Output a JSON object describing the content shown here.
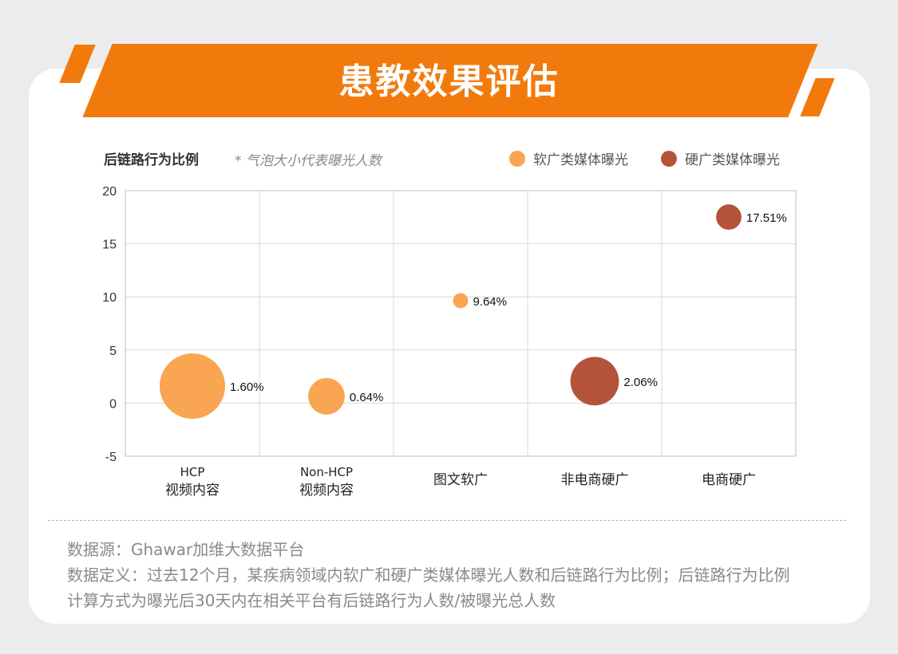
{
  "header": {
    "title": "患教效果评估"
  },
  "chart_header": {
    "title": "后链路行为比例",
    "note": "* 气泡大小代表曝光人数"
  },
  "legend": [
    {
      "label": "软广类媒体曝光",
      "color": "#F9A552"
    },
    {
      "label": "硬广类媒体曝光",
      "color": "#B5533A"
    }
  ],
  "chart_data": {
    "type": "scatter",
    "subtype": "bubble",
    "title": "后链路行为比例",
    "note": "* 气泡大小代表曝光人数",
    "categories": [
      [
        "HCP",
        "视频内容"
      ],
      [
        "Non-HCP",
        "视频内容"
      ],
      [
        "图文软广"
      ],
      [
        "非电商硬广"
      ],
      [
        "电商硬广"
      ]
    ],
    "ylim": [
      -5,
      20
    ],
    "yticks": [
      -5,
      0,
      5,
      10,
      15,
      20
    ],
    "grid": true,
    "legend_position": "top-right",
    "series": [
      {
        "name": "软广类媒体曝光",
        "color": "#F9A552",
        "points": [
          {
            "category_index": 0,
            "y": 1.6,
            "label": "1.60%",
            "relative_size": 1.0
          },
          {
            "category_index": 1,
            "y": 0.64,
            "label": "0.64%",
            "relative_size": 0.31
          },
          {
            "category_index": 2,
            "y": 9.64,
            "label": "9.64%",
            "relative_size": 0.053
          }
        ]
      },
      {
        "name": "硬广类媒体曝光",
        "color": "#B5533A",
        "points": [
          {
            "category_index": 3,
            "y": 2.06,
            "label": "2.06%",
            "relative_size": 0.55
          },
          {
            "category_index": 4,
            "y": 17.51,
            "label": "17.51%",
            "relative_size": 0.15
          }
        ]
      }
    ]
  },
  "footer": {
    "source": "数据源：Ghawar加维大数据平台",
    "definition": "数据定义：过去12个月，某疾病领域内软广和硬广类媒体曝光人数和后链路行为比例；后链路行为比例",
    "method": "计算方式为曝光后30天内在相关平台有后链路行为人数/被曝光总人数"
  }
}
